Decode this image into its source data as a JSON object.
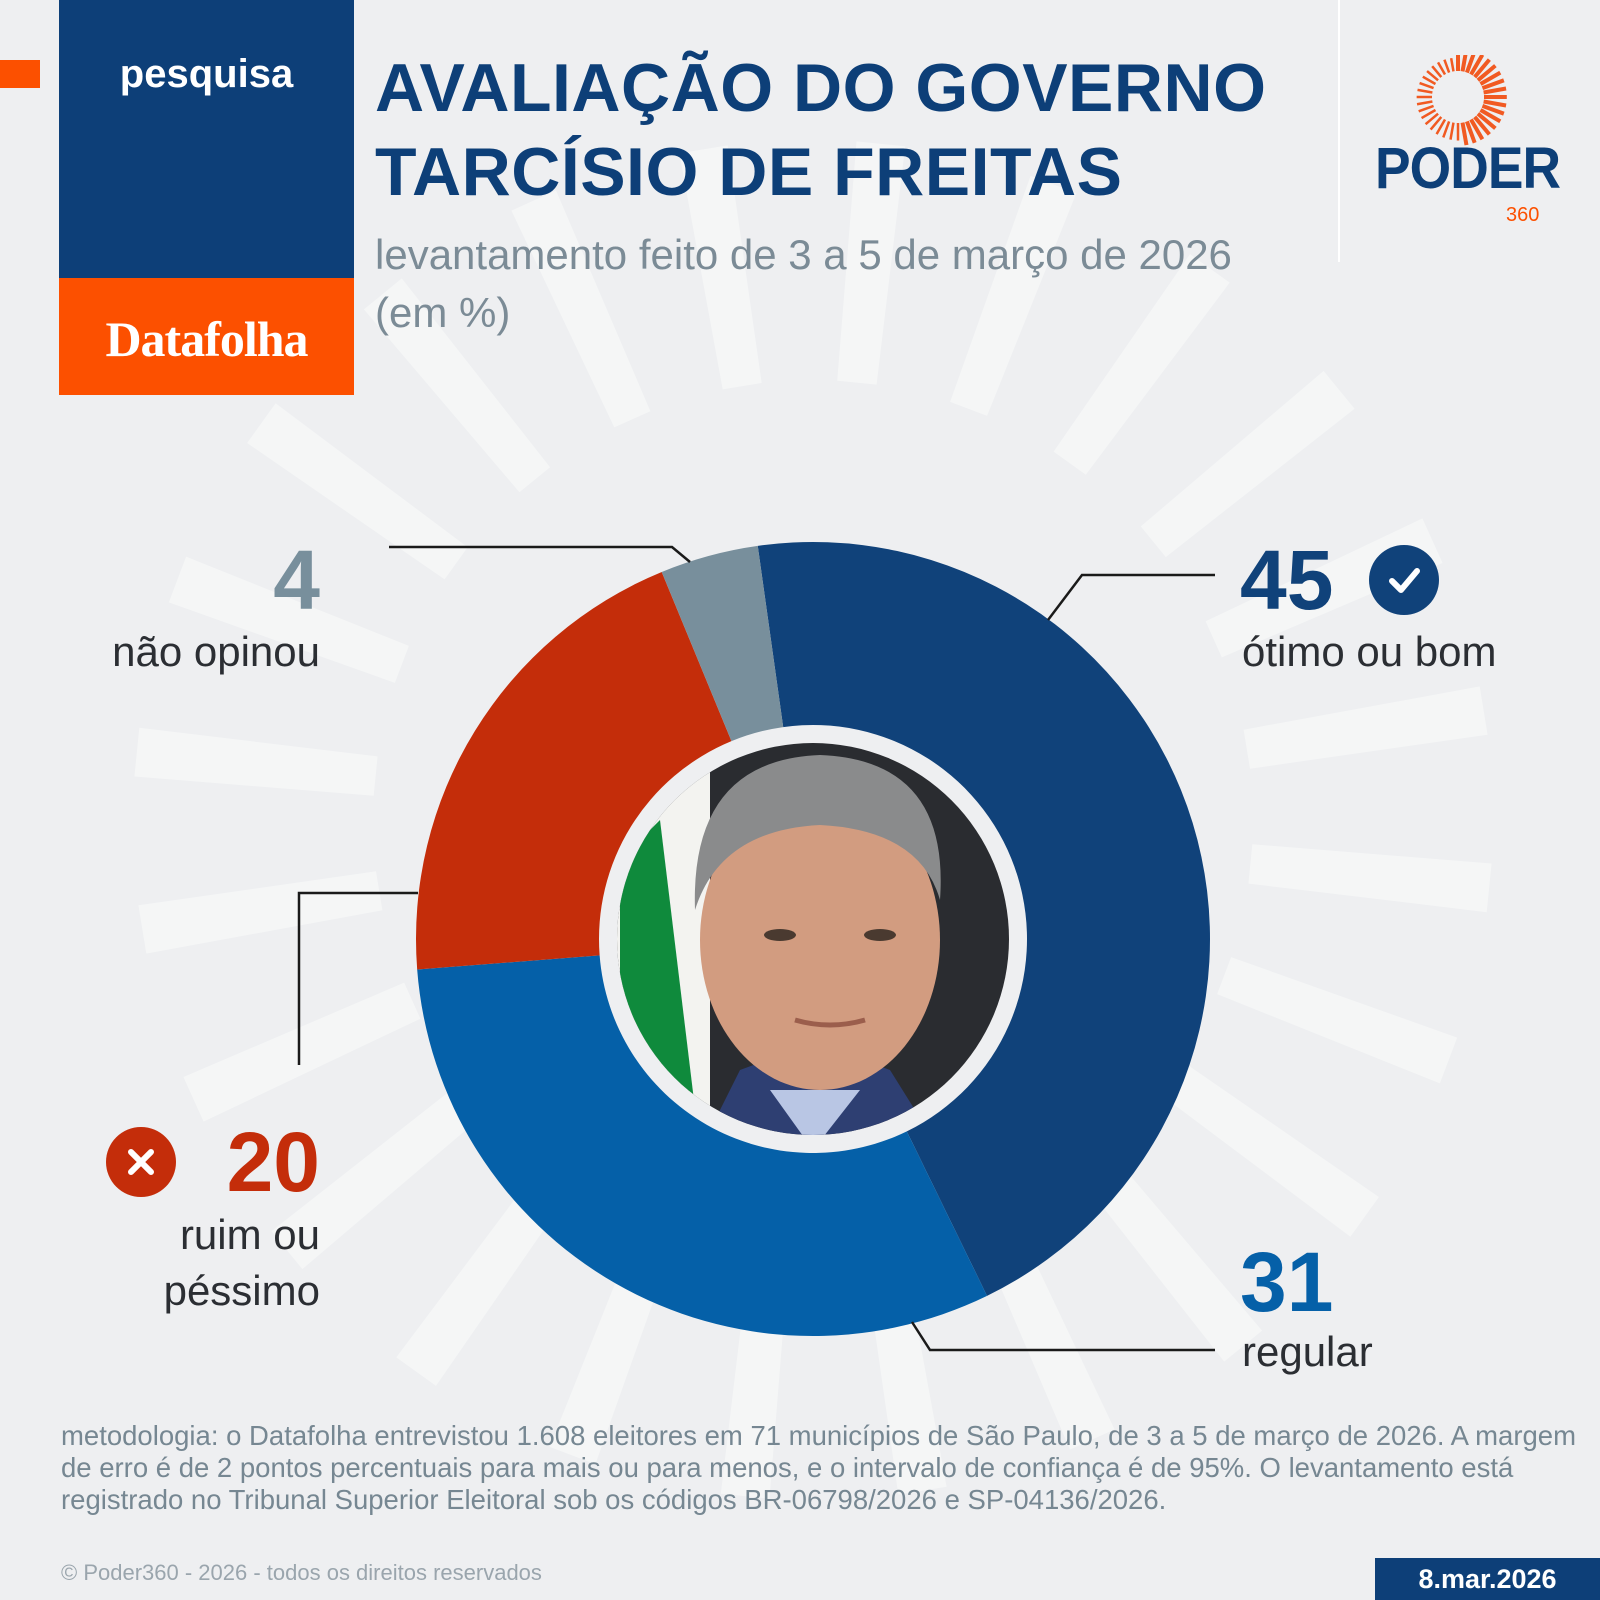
{
  "header": {
    "tag": "pesquisa",
    "source": "Datafolha",
    "title_line1": "AVALIAÇÃO DO GOVERNO",
    "title_line2": "TARCÍSIO DE FREITAS",
    "subtitle": "levantamento feito de 3 a 5 de março de 2026 (em %)",
    "logo_text": "PODER",
    "logo_sub": "360"
  },
  "chart_data": {
    "type": "pie",
    "subtype": "donut",
    "title": "AVALIAÇÃO DO GOVERNO TARCÍSIO DE FREITAS",
    "unit": "%",
    "slices": [
      {
        "label": "ótimo ou bom",
        "value": 45,
        "color": "#10427a",
        "icon": "check-circle-icon"
      },
      {
        "label": "regular",
        "value": 31,
        "color": "#0560a8"
      },
      {
        "label": "ruim ou péssimo",
        "value": 20,
        "color": "#c42d0a",
        "icon": "x-circle-icon"
      },
      {
        "label": "não opinou",
        "value": 4,
        "color": "#788f9c"
      }
    ]
  },
  "labels": {
    "good_value": "45",
    "good_label": "ótimo ou bom",
    "regular_value": "31",
    "regular_label": "regular",
    "bad_value": "20",
    "bad_label_1": "ruim ou",
    "bad_label_2": "péssimo",
    "none_value": "4",
    "none_label": "não opinou"
  },
  "footer": {
    "methodology": "metodologia: o Datafolha entrevistou 1.608 eleitores em 71 municípios de São Paulo, de 3 a 5 de março de 2026. A margem de erro é de 2 pontos percentuais para mais ou para menos, e o intervalo de confiança é de 95%. O levantamento está registrado no Tribunal Superior Eleitoral sob os códigos BR-06798/2026 e SP-04136/2026.",
    "copyright": "© Poder360 - 2026 - todos os direitos reservados",
    "date": "8.mar.2026"
  }
}
